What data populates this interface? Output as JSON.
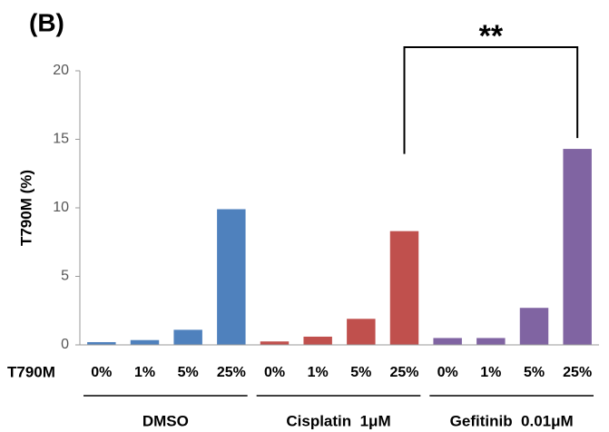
{
  "chart_data": {
    "type": "bar",
    "panel_label": "(B)",
    "y_label": "T790M (%)",
    "x_row_label": "T790M",
    "annotation": "**",
    "ylim": [
      0,
      20
    ],
    "yticks": [
      0,
      5,
      10,
      15,
      20
    ],
    "groups": [
      {
        "name": "DMSO",
        "color": "#4f81bd",
        "categories": [
          "0%",
          "1%",
          "5%",
          "25%"
        ],
        "values": [
          0.2,
          0.35,
          1.1,
          9.9
        ]
      },
      {
        "name": "Cisplatin  1μM",
        "color": "#c0504d",
        "categories": [
          "0%",
          "1%",
          "5%",
          "25%"
        ],
        "values": [
          0.25,
          0.6,
          1.9,
          8.3
        ]
      },
      {
        "name": "Gefitinib  0.01μM",
        "color": "#8064a2",
        "categories": [
          "0%",
          "1%",
          "5%",
          "25%"
        ],
        "values": [
          0.5,
          0.5,
          2.7,
          14.3
        ]
      }
    ]
  }
}
